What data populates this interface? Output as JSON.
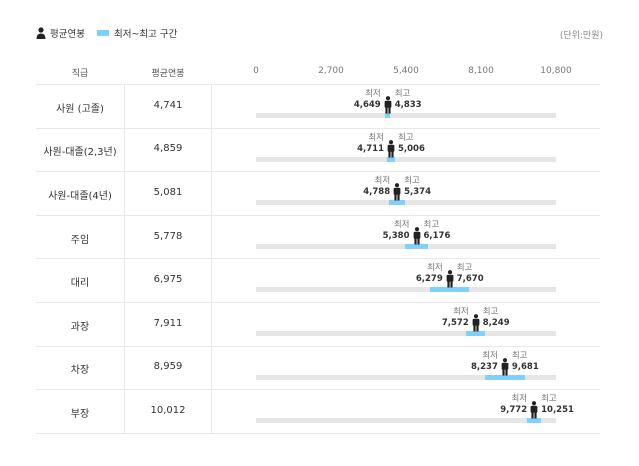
{
  "legend": {
    "avg_label": "평균연봉",
    "range_label": "최저~최고 구간",
    "unit": "(단위:만원)"
  },
  "columns": {
    "rank": "직급",
    "avg": "평균연봉"
  },
  "colors": {
    "range": "#7fd0fa",
    "track": "#e6e6e6",
    "figure": "#222222"
  },
  "labels": {
    "min": "최저",
    "max": "최고"
  },
  "chart_data": {
    "type": "range-bar",
    "x_ticks": [
      "0",
      "2,700",
      "5,400",
      "8,100",
      "10,800"
    ],
    "xlim": [
      0,
      10800
    ],
    "rows": [
      {
        "rank": "사원 (고졸)",
        "avg": 4741,
        "avg_text": "4,741",
        "min": 4649,
        "min_text": "4,649",
        "max": 4833,
        "max_text": "4,833"
      },
      {
        "rank": "사원-대졸(2,3년)",
        "avg": 4859,
        "avg_text": "4,859",
        "min": 4711,
        "min_text": "4,711",
        "max": 5006,
        "max_text": "5,006"
      },
      {
        "rank": "사원-대졸(4년)",
        "avg": 5081,
        "avg_text": "5,081",
        "min": 4788,
        "min_text": "4,788",
        "max": 5374,
        "max_text": "5,374"
      },
      {
        "rank": "주임",
        "avg": 5778,
        "avg_text": "5,778",
        "min": 5380,
        "min_text": "5,380",
        "max": 6176,
        "max_text": "6,176"
      },
      {
        "rank": "대리",
        "avg": 6975,
        "avg_text": "6,975",
        "min": 6279,
        "min_text": "6,279",
        "max": 7670,
        "max_text": "7,670"
      },
      {
        "rank": "과장",
        "avg": 7911,
        "avg_text": "7,911",
        "min": 7572,
        "min_text": "7,572",
        "max": 8249,
        "max_text": "8,249"
      },
      {
        "rank": "차장",
        "avg": 8959,
        "avg_text": "8,959",
        "min": 8237,
        "min_text": "8,237",
        "max": 9681,
        "max_text": "9,681"
      },
      {
        "rank": "부장",
        "avg": 10012,
        "avg_text": "10,012",
        "min": 9772,
        "min_text": "9,772",
        "max": 10251,
        "max_text": "10,251"
      }
    ]
  }
}
